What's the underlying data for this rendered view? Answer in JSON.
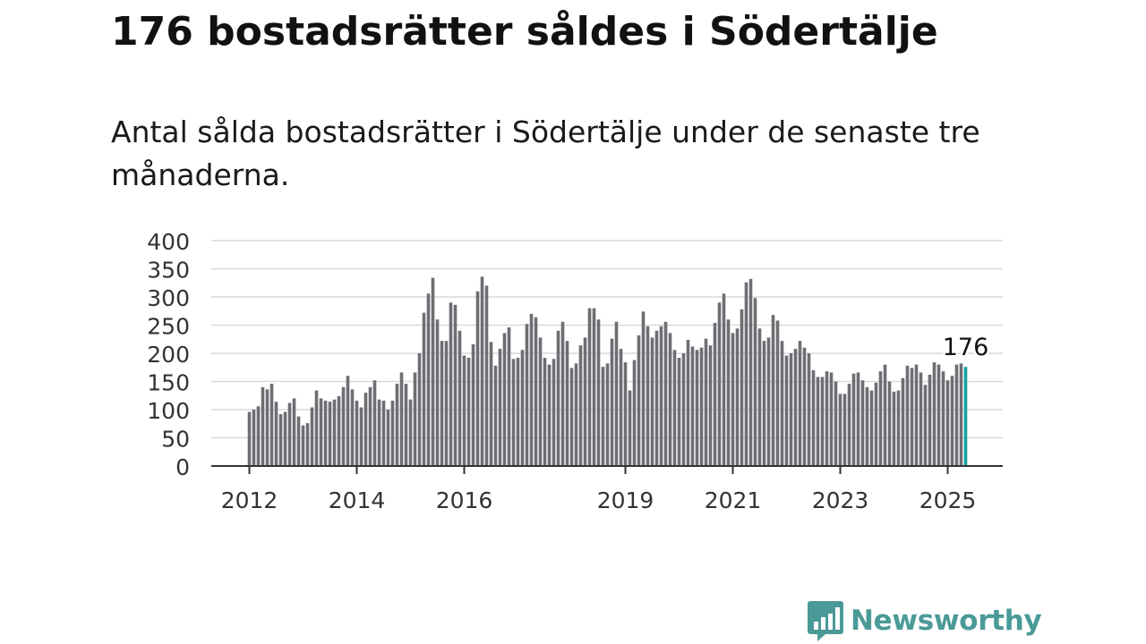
{
  "title": "176 bostadsrätter såldes i Södertälje",
  "subtitle": "Antal sålda bostadsrätter i Södertälje under de senaste tre månaderna.",
  "brand": {
    "name": "Newsworthy",
    "logo_icon": "bar-chart-speech-bubble-icon",
    "color": "#4a9a98"
  },
  "chart_data": {
    "type": "bar",
    "title": "",
    "xlabel": "",
    "ylabel": "",
    "ylim": [
      0,
      400
    ],
    "yticks": [
      "0",
      "50",
      "100",
      "150",
      "200",
      "250",
      "300",
      "350",
      "400"
    ],
    "xtick_labels": [
      {
        "label": "2012",
        "year": 2012
      },
      {
        "label": "2014",
        "year": 2014
      },
      {
        "label": "2016",
        "year": 2016
      },
      {
        "label": "2019",
        "year": 2019
      },
      {
        "label": "2021",
        "year": 2021
      },
      {
        "label": "2023",
        "year": 2023
      },
      {
        "label": "2025",
        "year": 2025
      }
    ],
    "start": "2012-01",
    "grid": true,
    "bar_color": "#6e6d73",
    "highlight_color": "#13a3a0",
    "highlight_label": "176",
    "values": [
      96,
      100,
      106,
      140,
      136,
      146,
      114,
      92,
      96,
      112,
      120,
      88,
      72,
      76,
      104,
      134,
      120,
      116,
      114,
      118,
      124,
      140,
      160,
      136,
      116,
      104,
      130,
      140,
      152,
      118,
      116,
      100,
      116,
      146,
      166,
      146,
      118,
      166,
      200,
      272,
      306,
      334,
      260,
      222,
      222,
      290,
      286,
      240,
      196,
      192,
      216,
      310,
      336,
      320,
      220,
      178,
      208,
      236,
      246,
      190,
      192,
      206,
      252,
      270,
      264,
      228,
      192,
      180,
      190,
      240,
      256,
      222,
      174,
      182,
      214,
      228,
      280,
      280,
      260,
      176,
      182,
      226,
      256,
      208,
      184,
      134,
      188,
      232,
      274,
      248,
      228,
      240,
      248,
      256,
      236,
      206,
      192,
      200,
      224,
      212,
      206,
      210,
      226,
      214,
      254,
      290,
      306,
      260,
      236,
      244,
      278,
      326,
      332,
      298,
      244,
      222,
      228,
      268,
      258,
      222,
      196,
      200,
      208,
      222,
      210,
      200,
      170,
      158,
      158,
      168,
      166,
      150,
      128,
      128,
      146,
      164,
      166,
      152,
      140,
      134,
      148,
      168,
      180,
      150,
      132,
      134,
      156,
      178,
      174,
      180,
      166,
      144,
      162,
      184,
      180,
      168,
      152,
      160,
      180,
      182,
      176
    ]
  }
}
